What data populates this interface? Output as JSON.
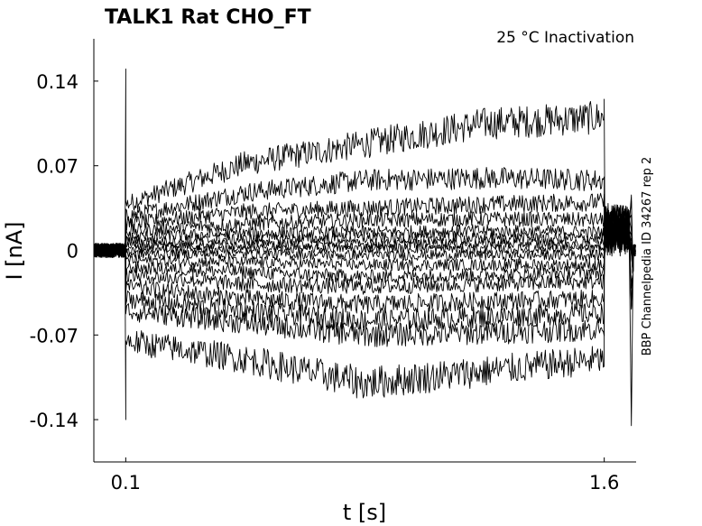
{
  "chart_data": {
    "type": "line",
    "title": "TALK1  Rat  CHO_FT",
    "condition": "25 °C  Inactivation",
    "side_label": "BBP Channelpedia ID 34267 rep 2",
    "xlabel": "t [s]",
    "ylabel": "I [nA]",
    "xlim": [
      0.0,
      1.7
    ],
    "ylim": [
      -0.175,
      0.175
    ],
    "xticks": [
      {
        "value": 0.1,
        "label": "0.1"
      },
      {
        "value": 1.6,
        "label": "1.6"
      }
    ],
    "yticks": [
      {
        "value": 0.14,
        "label": "0.14"
      },
      {
        "value": 0.07,
        "label": "0.07"
      },
      {
        "value": 0.0,
        "label": "0"
      },
      {
        "value": -0.07,
        "label": "-0.07"
      },
      {
        "value": -0.14,
        "label": "-0.14"
      }
    ],
    "grid": false,
    "legend": "none",
    "line_color": "#000000",
    "step_on": 0.1,
    "step_off": 1.6,
    "series": [
      {
        "values": [
          0.038,
          0.072,
          0.088,
          0.105,
          0.11
        ]
      },
      {
        "values": [
          0.028,
          0.048,
          0.058,
          0.06,
          0.058
        ]
      },
      {
        "values": [
          0.022,
          0.032,
          0.035,
          0.038,
          0.04
        ]
      },
      {
        "values": [
          0.016,
          0.022,
          0.025,
          0.026,
          0.025
        ]
      },
      {
        "values": [
          0.011,
          0.014,
          0.015,
          0.016,
          0.015
        ]
      },
      {
        "values": [
          0.007,
          0.009,
          0.01,
          0.01,
          0.01
        ]
      },
      {
        "values": [
          0.004,
          0.005,
          0.005,
          0.006,
          0.005
        ]
      },
      {
        "values": [
          0.001,
          0.001,
          0.002,
          0.001,
          0.001
        ]
      },
      {
        "values": [
          -0.003,
          -0.003,
          -0.004,
          -0.004,
          -0.004
        ]
      },
      {
        "values": [
          -0.008,
          -0.01,
          -0.012,
          -0.012,
          -0.012
        ]
      },
      {
        "values": [
          -0.014,
          -0.018,
          -0.022,
          -0.02,
          -0.018
        ]
      },
      {
        "values": [
          -0.02,
          -0.028,
          -0.03,
          -0.028,
          -0.026
        ]
      },
      {
        "values": [
          -0.03,
          -0.04,
          -0.045,
          -0.042,
          -0.04
        ]
      },
      {
        "values": [
          -0.04,
          -0.05,
          -0.058,
          -0.055,
          -0.052
        ]
      },
      {
        "values": [
          -0.05,
          -0.06,
          -0.07,
          -0.068,
          -0.065
        ]
      },
      {
        "values": [
          -0.075,
          -0.09,
          -0.11,
          -0.1,
          -0.09
        ]
      }
    ]
  }
}
